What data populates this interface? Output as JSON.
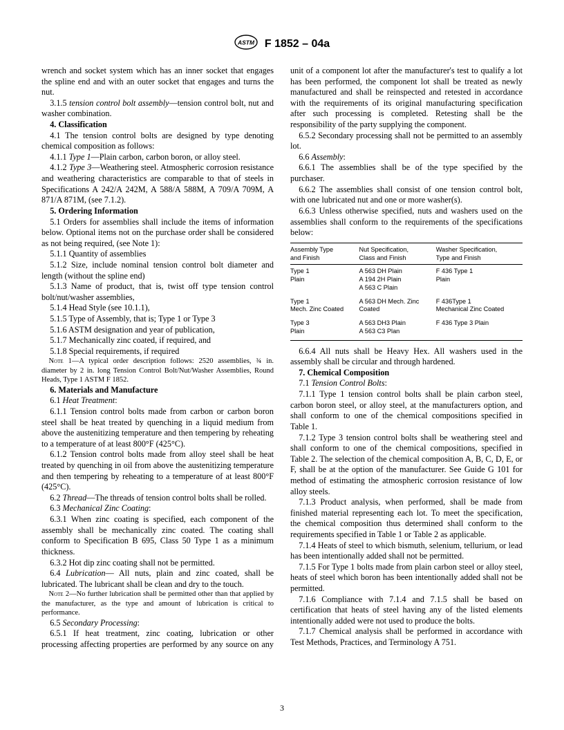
{
  "header": {
    "designation": "F 1852 – 04a"
  },
  "leftColumn": {
    "intro1": "wrench and socket system which has an inner socket that engages the spline end and with an outer socket that engages and turns the nut.",
    "intro2_label": "3.1.5 ",
    "intro2_term": "tension control bolt assembly",
    "intro2_rest": "—tension control bolt, nut and washer combination.",
    "s4_title": "4. Classification",
    "s4_1": "4.1 The tension control bolts are designed by type denoting chemical composition as follows:",
    "s4_1_1_label": "4.1.1 ",
    "s4_1_1_term": "Type 1",
    "s4_1_1_rest": "—Plain carbon, carbon boron, or alloy steel.",
    "s4_1_2_label": "4.1.2 ",
    "s4_1_2_term": "Type 3",
    "s4_1_2_rest": "—Weathering steel. Atmospheric corrosion resistance and weathering characteristics are comparable to that of steels in Specifications A 242/A 242M, A 588/A 588M, A 709/A 709M, A 871/A 871M, (see 7.1.2).",
    "s5_title": "5. Ordering Information",
    "s5_1": "5.1 Orders for assemblies shall include the items of information below. Optional items not on the purchase order shall be considered as not being required, (see Note 1):",
    "s5_1_1": "5.1.1 Quantity of assemblies",
    "s5_1_2": "5.1.2 Size, include nominal tension control bolt diameter and length (without the spline end)",
    "s5_1_3": "5.1.3 Name of product, that is, twist off type tension control bolt/nut/washer assemblies,",
    "s5_1_4": "5.1.4 Head Style (see 10.1.1),",
    "s5_1_5": "5.1.5 Type of Assembly, that is; Type 1 or Type 3",
    "s5_1_6": "5.1.6 ASTM designation and year of publication,",
    "s5_1_7": "5.1.7 Mechanically zinc coated, if required, and",
    "s5_1_8": "5.1.8 Special requirements, if required",
    "note1_label": "Note 1",
    "note1_text": "—A typical order description follows: 2520 assemblies, ¾ in. diameter by 2 in. long Tension Control Bolt/Nut/Washer Assemblies, Round Heads, Type 1 ASTM F 1852.",
    "s6_title": "6. Materials and Manufacture",
    "s6_1_label": "6.1 ",
    "s6_1_term": "Heat Treatment",
    "s6_1_1": "6.1.1 Tension control bolts made from carbon or carbon boron steel shall be heat treated by quenching in a liquid medium from above the austenitizing temperature and then tempering by reheating to a temperature of at least 800°F (425°C).",
    "s6_1_2": "6.1.2 Tension control bolts made from alloy steel shall be heat treated by quenching in oil from above the austenitizing temperature and then tempering by reheating to a temperature of at least 800°F (425°C).",
    "s6_2_label": "6.2 ",
    "s6_2_term": "Thread",
    "s6_2_rest": "—The threads of tension control bolts shall be rolled.",
    "s6_3_label": "6.3 ",
    "s6_3_term": "Mechanical Zinc Coating",
    "s6_3_1": "6.3.1 When zinc coating is specified, each component of the assembly shall be mechanically zinc coated. The coating shall conform to Specification B 695, Class 50 Type 1 as a minimum thickness.",
    "s6_3_2": "6.3.2 Hot dip zinc coating shall not be permitted.",
    "s6_4_label": "6.4 ",
    "s6_4_term": "Lubrication",
    "s6_4_rest": "— All nuts, plain and zinc coated, shall be lubricated. The lubricant shall be clean and dry to the touch.",
    "note2_label": "Note 2",
    "note2_text": "—No further lubrication shall be permitted other than that applied by the manufacturer, as the type and amount of lubrication is critical to performance.",
    "s6_5_label": "6.5 ",
    "s6_5_term": "Secondary Processing"
  },
  "rightColumn": {
    "s6_5_1": "6.5.1 If heat treatment, zinc coating, lubrication or other processing affecting properties are performed by any source on any unit of a component lot after the manufacturer's test to qualify a lot has been performed, the component lot shall be treated as newly manufactured and shall be reinspected and retested in accordance with the requirements of its original manufacturing specification after such processing is completed. Retesting shall be the responsibility of the party supplying the component.",
    "s6_5_2": "6.5.2 Secondary processing shall not be permitted to an assembly lot.",
    "s6_6_label": "6.6 ",
    "s6_6_term": "Assembly",
    "s6_6_1": "6.6.1 The assemblies shall be of the type specified by the purchaser.",
    "s6_6_2": "6.6.2 The assemblies shall consist of one tension control bolt, with one lubricated nut and one or more washer(s).",
    "s6_6_3": "6.6.3 Unless otherwise specified, nuts and washers used on the assemblies shall conform to the requirements of the specifications below:",
    "table": {
      "headers": {
        "c1a": "Assembly Type",
        "c1b": "and Finish",
        "c2a": "Nut Specification,",
        "c2b": "Class and Finish",
        "c3a": "Washer Specification,",
        "c3b": "Type and Finish"
      },
      "rows": [
        {
          "c1": "Type 1\nPlain",
          "c2": "A 563 DH Plain\nA 194 2H Plain\nA 563 C Plain",
          "c3": "F 436 Type 1\nPlain"
        },
        {
          "c1": "Type 1\nMech. Zinc Coated",
          "c2": "A 563 DH Mech. Zinc\nCoated",
          "c3": "F 436Type 1\nMechanical Zinc Coated"
        },
        {
          "c1": "Type 3\nPlain",
          "c2": "A 563 DH3 Plain\nA 563 C3 Plan",
          "c3": "F 436 Type 3 Plain"
        }
      ]
    },
    "s6_6_4": "6.6.4 All nuts shall be Heavy Hex. All washers used in the assembly shall be circular and through hardened.",
    "s7_title": "7. Chemical Composition",
    "s7_1_label": "7.1 ",
    "s7_1_term": "Tension Control Bolts",
    "s7_1_1": "7.1.1 Type 1 tension control bolts shall be plain carbon steel, carbon boron steel, or alloy steel, at the manufacturers option, and shall conform to one of the chemical compositions specified in Table 1.",
    "s7_1_2": "7.1.2 Type 3 tension control bolts shall be weathering steel and shall conform to one of the chemical compositions, specified in Table 2. The selection of the chemical composition A, B, C, D, E, or F, shall be at the option of the manufacturer. See Guide G 101 for method of estimating the atmospheric corrosion resistance of low alloy steels.",
    "s7_1_3": "7.1.3 Product analysis, when performed, shall be made from finished material representing each lot. To meet the specification, the chemical composition thus determined shall conform to the requirements specified in Table 1 or Table 2 as applicable.",
    "s7_1_4": "7.1.4 Heats of steel to which bismuth, selenium, tellurium, or lead has been intentionally added shall not be permitted.",
    "s7_1_5": "7.1.5 For Type 1 bolts made from plain carbon steel or alloy steel, heats of steel which boron has been intentionally added shall not be permitted.",
    "s7_1_6": "7.1.6 Compliance with 7.1.4 and 7.1.5 shall be based on certification that heats of steel having any of the listed elements intentionally added were not used to produce the bolts.",
    "s7_1_7": "7.1.7 Chemical analysis shall be performed in accordance with Test Methods, Practices, and Terminology A 751."
  },
  "pageNumber": "3"
}
